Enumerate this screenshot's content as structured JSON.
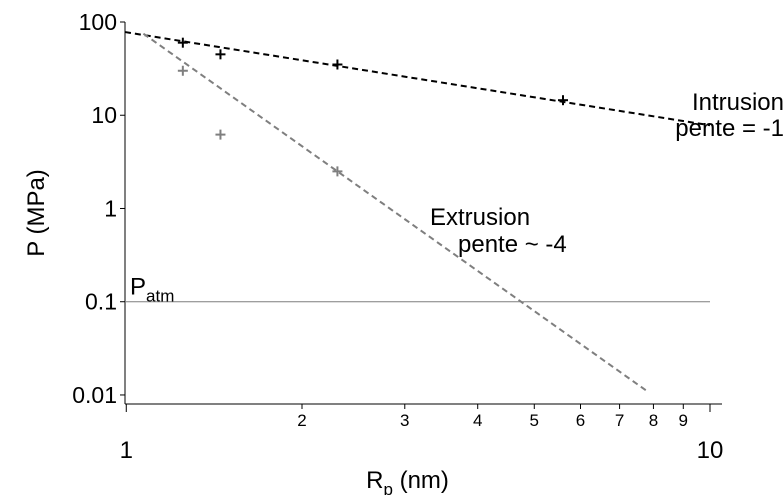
{
  "chart_data": {
    "type": "scatter",
    "xscale": "log",
    "yscale": "log",
    "xlim": [
      0.995,
      10
    ],
    "ylim": [
      0.008,
      100
    ],
    "grid": false,
    "ylabel": "P (MPa)",
    "xlabel": {
      "main": "R",
      "sub": "p",
      "rest": " (nm)"
    },
    "x_major_ticks": [
      {
        "value": 1,
        "label": "1"
      },
      {
        "value": 10,
        "label": "10"
      }
    ],
    "x_minor_ticks": [
      {
        "value": 2,
        "label": "2"
      },
      {
        "value": 3,
        "label": "3"
      },
      {
        "value": 4,
        "label": "4"
      },
      {
        "value": 5,
        "label": "5"
      },
      {
        "value": 6,
        "label": "6"
      },
      {
        "value": 7,
        "label": "7"
      },
      {
        "value": 8,
        "label": "8"
      },
      {
        "value": 9,
        "label": "9"
      }
    ],
    "y_ticks": [
      {
        "value": 100,
        "label": "100"
      },
      {
        "value": 10,
        "label": "10"
      },
      {
        "value": 1,
        "label": "1"
      },
      {
        "value": 0.1,
        "label": "0.1"
      },
      {
        "value": 0.01,
        "label": "0.01"
      }
    ],
    "series": [
      {
        "key": "intrusion",
        "color": "#000000",
        "points": [
          {
            "x": 1.25,
            "y": 60
          },
          {
            "x": 1.45,
            "y": 45
          },
          {
            "x": 2.3,
            "y": 35
          },
          {
            "x": 5.6,
            "y": 14.5
          }
        ],
        "fit": {
          "x0": 0.995,
          "y0": 78,
          "x1": 10,
          "y1": 7.8
        },
        "label_lines": [
          "Intrusion",
          "pente = -1"
        ]
      },
      {
        "key": "extrusion",
        "color": "#7f7f7f",
        "points": [
          {
            "x": 1.25,
            "y": 30
          },
          {
            "x": 1.45,
            "y": 6.2
          },
          {
            "x": 2.3,
            "y": 2.5
          }
        ],
        "fit": {
          "x0": 1.07,
          "y0": 75,
          "x1": 7.8,
          "y1": 0.011
        },
        "label_lines": [
          "Extrusion",
          "pente ~ -4"
        ]
      }
    ],
    "reference_line": {
      "y": 0.1,
      "x_from": 0.995,
      "x_to": 10,
      "color": "#7f7f7f",
      "label_main": "P",
      "label_sub": "atm"
    }
  }
}
